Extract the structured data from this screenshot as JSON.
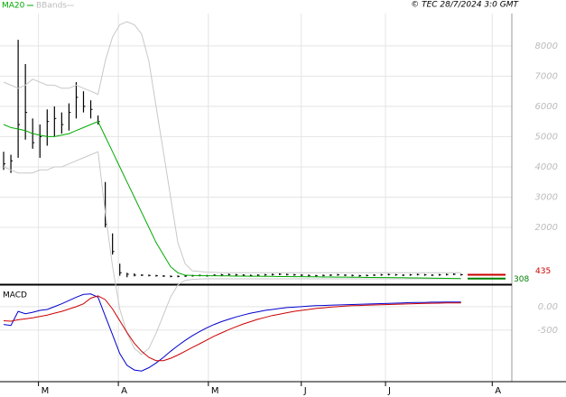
{
  "chart_data": [
    {
      "type": "ohlc",
      "annotation": "© TEC 28/7/2024 3:0 GMT",
      "bars": {
        "color": "#000000",
        "high": [
          4500,
          4400,
          8200,
          7400,
          5600,
          5400,
          5900,
          6000,
          5800,
          6100,
          6800,
          6500,
          6200,
          5700,
          3500,
          1800,
          800,
          500,
          480,
          450,
          440,
          430,
          420,
          410,
          410,
          420,
          430,
          440,
          430,
          450,
          460,
          470,
          460,
          450,
          440,
          450,
          460,
          470,
          480,
          470,
          460,
          450,
          440,
          430,
          440,
          450,
          460,
          450,
          440,
          430,
          440,
          450,
          460,
          470,
          460,
          450,
          460,
          470,
          460,
          450,
          460,
          470,
          480,
          465
        ],
        "low": [
          3900,
          3800,
          4300,
          4900,
          4600,
          4300,
          4700,
          5000,
          5100,
          5200,
          5600,
          5800,
          5600,
          5400,
          2000,
          1100,
          400,
          350,
          380,
          390,
          380,
          370,
          360,
          350,
          350,
          360,
          370,
          380,
          370,
          390,
          400,
          410,
          400,
          390,
          380,
          390,
          400,
          410,
          420,
          410,
          400,
          390,
          380,
          370,
          380,
          390,
          400,
          390,
          380,
          370,
          380,
          390,
          400,
          410,
          400,
          390,
          400,
          410,
          400,
          390,
          400,
          410,
          420,
          405
        ],
        "close": [
          4100,
          4200,
          5400,
          5800,
          4800,
          5000,
          5500,
          5600,
          5400,
          5800,
          6300,
          6000,
          5900,
          5500,
          2100,
          1200,
          500,
          450,
          420,
          420,
          410,
          400,
          390,
          380,
          380,
          390,
          400,
          410,
          400,
          420,
          430,
          440,
          430,
          420,
          410,
          420,
          430,
          440,
          450,
          440,
          430,
          420,
          410,
          400,
          410,
          420,
          430,
          420,
          410,
          400,
          410,
          420,
          430,
          440,
          430,
          420,
          430,
          440,
          430,
          420,
          430,
          440,
          450,
          435
        ]
      },
      "series": [
        {
          "name": "MA20",
          "color": "#00aa00",
          "values": [
            5400,
            5300,
            5250,
            5200,
            5100,
            5050,
            5000,
            5000,
            5050,
            5100,
            5200,
            5300,
            5400,
            5500,
            5000,
            4500,
            4000,
            3500,
            3000,
            2500,
            2000,
            1500,
            1100,
            700,
            500,
            420,
            410,
            405,
            400,
            400,
            395,
            395,
            390,
            390,
            385,
            385,
            380,
            380,
            375,
            375,
            370,
            370,
            365,
            365,
            360,
            360,
            355,
            355,
            350,
            350,
            345,
            345,
            340,
            340,
            335,
            335,
            330,
            330,
            325,
            320,
            318,
            315,
            312,
            308
          ]
        }
      ],
      "bands": {
        "name": "BBands",
        "color": "#c8c8c8",
        "upper": [
          6800,
          6700,
          6600,
          6700,
          6900,
          6800,
          6700,
          6700,
          6600,
          6600,
          6700,
          6600,
          6500,
          6400,
          7500,
          8300,
          8700,
          8800,
          8700,
          8400,
          7500,
          6000,
          4500,
          3000,
          1500,
          800,
          560,
          540,
          520,
          510,
          500,
          500,
          500,
          500,
          500,
          500,
          500,
          500,
          500,
          500,
          500,
          500,
          500,
          500,
          500,
          500,
          500,
          500,
          500,
          500,
          500,
          500,
          500,
          500,
          500,
          500,
          500,
          500,
          500,
          500,
          500,
          500,
          500,
          500
        ],
        "lower": [
          4000,
          3900,
          3800,
          3800,
          3800,
          3900,
          3900,
          4000,
          4000,
          4100,
          4200,
          4300,
          4400,
          4500,
          2500,
          700,
          -700,
          -1500,
          -2000,
          -2200,
          -2000,
          -1500,
          -900,
          -300,
          100,
          250,
          280,
          290,
          300,
          300,
          300,
          300,
          300,
          300,
          300,
          300,
          300,
          300,
          300,
          300,
          300,
          300,
          300,
          300,
          300,
          300,
          300,
          300,
          300,
          300,
          300,
          300,
          300,
          300,
          300,
          300,
          300,
          300,
          300,
          300,
          300,
          300,
          300,
          300
        ]
      },
      "markers": [
        {
          "value": 435,
          "color": "#cc0000"
        },
        {
          "value": 308,
          "color": "#008000"
        }
      ],
      "ylim": [
        180,
        9070
      ],
      "yticks": [
        2000,
        3000,
        4000,
        5000,
        6000,
        7000,
        8000
      ]
    },
    {
      "type": "macd",
      "title": "MACD",
      "series": [
        {
          "color": "#0000cc",
          "values": [
            -380,
            -400,
            -100,
            -150,
            -120,
            -80,
            -60,
            0,
            60,
            130,
            200,
            260,
            270,
            200,
            -200,
            -600,
            -1000,
            -1250,
            -1350,
            -1370,
            -1300,
            -1200,
            -1080,
            -950,
            -830,
            -720,
            -620,
            -530,
            -450,
            -380,
            -320,
            -270,
            -220,
            -180,
            -140,
            -110,
            -80,
            -60,
            -40,
            -20,
            -10,
            0,
            10,
            20,
            25,
            30,
            35,
            40,
            45,
            50,
            55,
            60,
            65,
            70,
            75,
            80,
            85,
            90,
            90,
            95,
            95,
            100,
            100,
            100
          ]
        },
        {
          "color": "#cc0000",
          "values": [
            -300,
            -310,
            -280,
            -260,
            -240,
            -210,
            -180,
            -140,
            -100,
            -50,
            0,
            60,
            180,
            230,
            150,
            -50,
            -300,
            -550,
            -780,
            -950,
            -1080,
            -1150,
            -1150,
            -1100,
            -1030,
            -950,
            -870,
            -790,
            -710,
            -630,
            -560,
            -490,
            -430,
            -370,
            -320,
            -270,
            -230,
            -190,
            -160,
            -130,
            -100,
            -80,
            -60,
            -40,
            -25,
            -10,
            0,
            10,
            20,
            25,
            30,
            35,
            40,
            45,
            50,
            55,
            60,
            65,
            70,
            72,
            75,
            78,
            80,
            80
          ]
        }
      ],
      "ylim": [
        -1540,
        420
      ],
      "yticks": [
        {
          "value": 0,
          "label": "0.00"
        },
        -500
      ],
      "xlim": [
        -0.5,
        70
      ],
      "xticks": [
        {
          "value": 4.8,
          "label": "M"
        },
        {
          "value": 15.8,
          "label": "A"
        },
        {
          "value": 28.2,
          "label": "M"
        },
        {
          "value": 41,
          "label": "J"
        },
        {
          "value": 52.6,
          "label": "J"
        },
        {
          "value": 67.3,
          "label": "A"
        }
      ]
    }
  ]
}
